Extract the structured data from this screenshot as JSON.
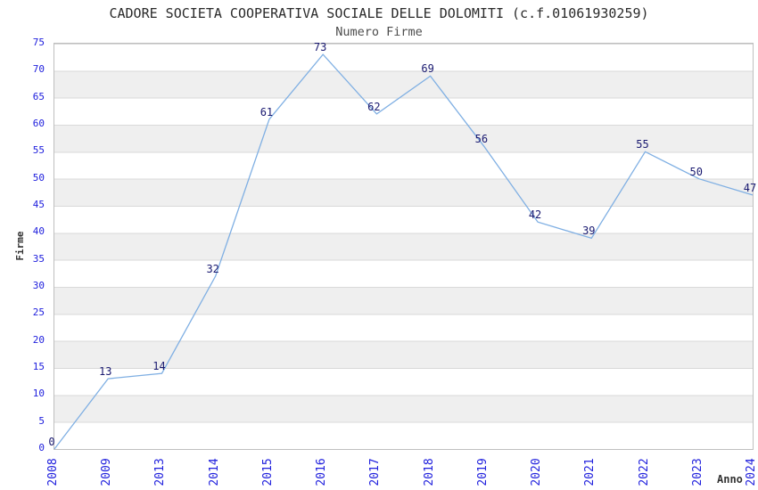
{
  "title": "CADORE SOCIETA COOPERATIVA SOCIALE DELLE DOLOMITI (c.f.01061930259)",
  "subtitle": "Numero Firme",
  "chart_data": {
    "type": "line",
    "title": "CADORE SOCIETA COOPERATIVA SOCIALE DELLE DOLOMITI (c.f.01061930259)",
    "subtitle": "Numero Firme",
    "categories": [
      "2008",
      "2009",
      "2013",
      "2014",
      "2015",
      "2016",
      "2017",
      "2018",
      "2019",
      "2020",
      "2021",
      "2022",
      "2023",
      "2024"
    ],
    "values": [
      0,
      13,
      14,
      32,
      61,
      73,
      62,
      69,
      56,
      42,
      39,
      55,
      50,
      47
    ],
    "xlabel": "Anno",
    "ylabel": "Firme",
    "ylim": [
      0,
      75
    ],
    "ytick_step": 5,
    "grid": "horizontal-bands-alternating",
    "legend": "none",
    "data_labels": true,
    "colors": {
      "line": "#7fafe3",
      "tick_labels": "#2020dd",
      "data_labels": "#191970",
      "band_gray": "#efefef",
      "gridline": "#d9d9d9",
      "plot_border": "#bfbfbf",
      "title_text": "#2a2a2a",
      "subtitle_text": "#4d4d4d",
      "axis_label_text": "#333333",
      "background": "#ffffff"
    }
  }
}
